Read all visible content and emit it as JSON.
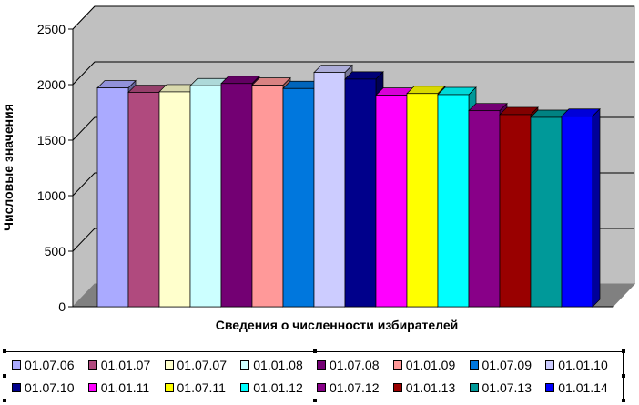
{
  "chart_data": {
    "type": "bar",
    "title": "",
    "xlabel": "Сведения о численности избирателей",
    "ylabel": "Числовые значения",
    "ylim": [
      0,
      2500
    ],
    "yticks": [
      "0",
      "500",
      "1000",
      "1500",
      "2000",
      "2500"
    ],
    "grid": true,
    "legend_position": "bottom",
    "series": [
      {
        "name": "01.07.06",
        "value": 1970,
        "color": "#aaaaff"
      },
      {
        "name": "01.01.07",
        "value": 1930,
        "color": "#b04a7e"
      },
      {
        "name": "01.07.07",
        "value": 1935,
        "color": "#ffffcc"
      },
      {
        "name": "01.01.08",
        "value": 1990,
        "color": "#ccffff"
      },
      {
        "name": "01.07.08",
        "value": 2010,
        "color": "#730073"
      },
      {
        "name": "01.01.09",
        "value": 1995,
        "color": "#ff9999"
      },
      {
        "name": "01.07.09",
        "value": 1965,
        "color": "#0077dd"
      },
      {
        "name": "01.01.10",
        "value": 2110,
        "color": "#ccccff"
      },
      {
        "name": "01.07.10",
        "value": 2050,
        "color": "#00008b"
      },
      {
        "name": "01.01.11",
        "value": 1905,
        "color": "#ff00ff"
      },
      {
        "name": "01.07.11",
        "value": 1920,
        "color": "#ffff00"
      },
      {
        "name": "01.01.12",
        "value": 1910,
        "color": "#00ffff"
      },
      {
        "name": "01.07.12",
        "value": 1765,
        "color": "#880088"
      },
      {
        "name": "01.01.13",
        "value": 1730,
        "color": "#990000"
      },
      {
        "name": "01.07.13",
        "value": 1705,
        "color": "#009999"
      },
      {
        "name": "01.01.14",
        "value": 1715,
        "color": "#0000ff"
      }
    ]
  }
}
